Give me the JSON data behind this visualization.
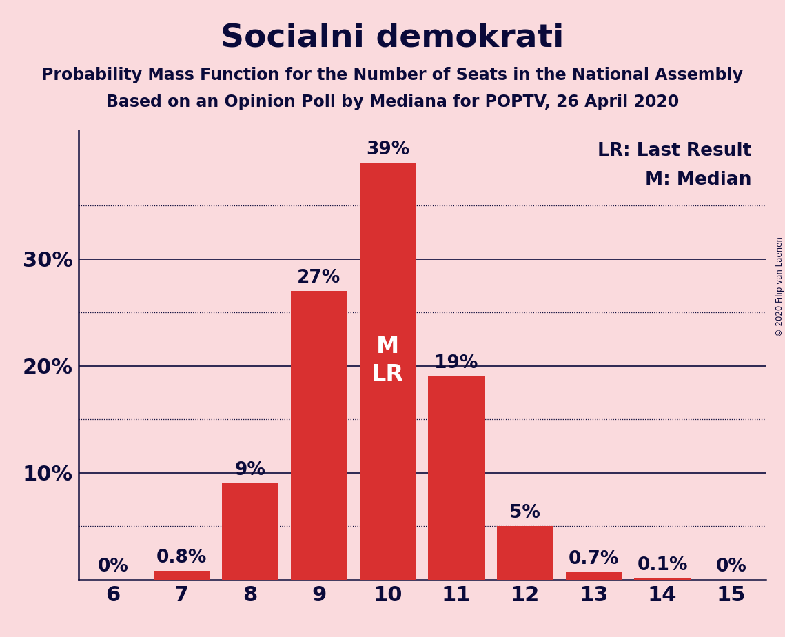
{
  "title": "Socialni demokrati",
  "subtitle1": "Probability Mass Function for the Number of Seats in the National Assembly",
  "subtitle2": "Based on an Opinion Poll by Mediana for POPTV, 26 April 2020",
  "copyright_text": "© 2020 Filip van Laenen",
  "categories": [
    6,
    7,
    8,
    9,
    10,
    11,
    12,
    13,
    14,
    15
  ],
  "values": [
    0.0,
    0.8,
    9.0,
    27.0,
    39.0,
    19.0,
    5.0,
    0.7,
    0.1,
    0.0
  ],
  "labels": [
    "0%",
    "0.8%",
    "9%",
    "27%",
    "39%",
    "19%",
    "5%",
    "0.7%",
    "0.1%",
    "0%"
  ],
  "bar_color": "#d93030",
  "background_color": "#fadadd",
  "text_color": "#0a0a3a",
  "median_seat": 10,
  "last_result_seat": 10,
  "legend_lr": "LR: Last Result",
  "legend_m": "M: Median",
  "ylim": [
    0,
    42
  ],
  "title_fontsize": 34,
  "subtitle_fontsize": 17,
  "tick_fontsize": 22,
  "label_fontsize": 19,
  "legend_fontsize": 19,
  "ml_label_fontsize": 24,
  "solid_gridlines": [
    10,
    20,
    30
  ],
  "dotted_gridlines": [
    5,
    15,
    25,
    35
  ],
  "ytick_labeled": [
    10,
    20,
    30
  ]
}
